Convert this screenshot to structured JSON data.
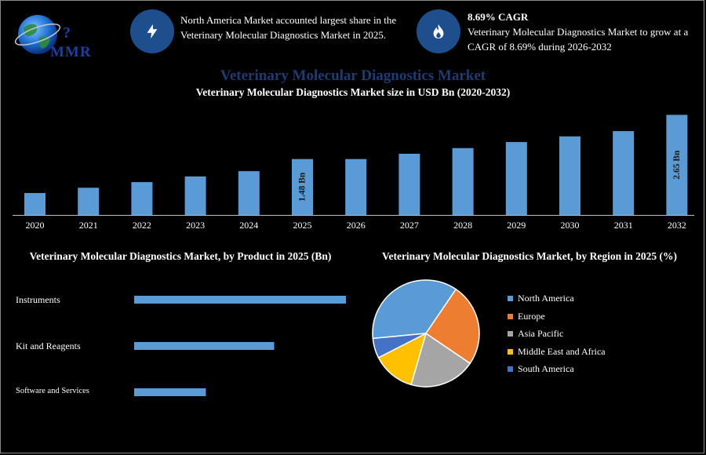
{
  "header": {
    "logo_text": "MMR",
    "info1": {
      "icon": "lightning-icon",
      "text": "North America Market accounted largest share in the Veterinary Molecular Diagnostics Market in 2025."
    },
    "info2": {
      "icon": "flame-icon",
      "title": "8.69% CAGR",
      "text": "Veterinary Molecular Diagnostics Market to grow at a CAGR of 8.69% during 2026-2032"
    }
  },
  "colors": {
    "bar": "#5b9bd5",
    "accent_dark": "#1f4e8c",
    "title": "#1f3b73"
  },
  "chart_data": [
    {
      "type": "bar",
      "title": "Veterinary Molecular Diagnostics Market",
      "subtitle": "Veterinary Molecular Diagnostics Market size in USD Bn (2020-2032)",
      "categories": [
        "2020",
        "2021",
        "2022",
        "2023",
        "2024",
        "2025",
        "2026",
        "2027",
        "2028",
        "2029",
        "2030",
        "2031",
        "2032"
      ],
      "values": [
        0.58,
        0.72,
        0.87,
        1.02,
        1.16,
        1.48,
        1.48,
        1.62,
        1.77,
        1.93,
        2.08,
        2.22,
        2.65
      ],
      "data_labels": {
        "5": "1.48 Bn",
        "12": "2.65 Bn"
      },
      "ylim": [
        0,
        2.7
      ],
      "grid": false
    },
    {
      "type": "bar",
      "orientation": "horizontal",
      "title": "Veterinary Molecular Diagnostics Market, by Product in 2025 (Bn)",
      "categories": [
        "Instruments",
        "Kit and Reagents",
        "Software and Services"
      ],
      "values": [
        0.62,
        0.41,
        0.21
      ],
      "xlim": [
        0,
        0.62
      ]
    },
    {
      "type": "pie",
      "title": "Veterinary Molecular Diagnostics Market, by Region in 2025 (%)",
      "categories": [
        "North America",
        "Europe",
        "Asia Pacific",
        "Middle East and Africa",
        "South America"
      ],
      "values": [
        36,
        25,
        20,
        13,
        6
      ],
      "colors": [
        "#5b9bd5",
        "#ed7d31",
        "#a5a5a5",
        "#ffc000",
        "#4472c4"
      ],
      "legend": "right"
    }
  ]
}
